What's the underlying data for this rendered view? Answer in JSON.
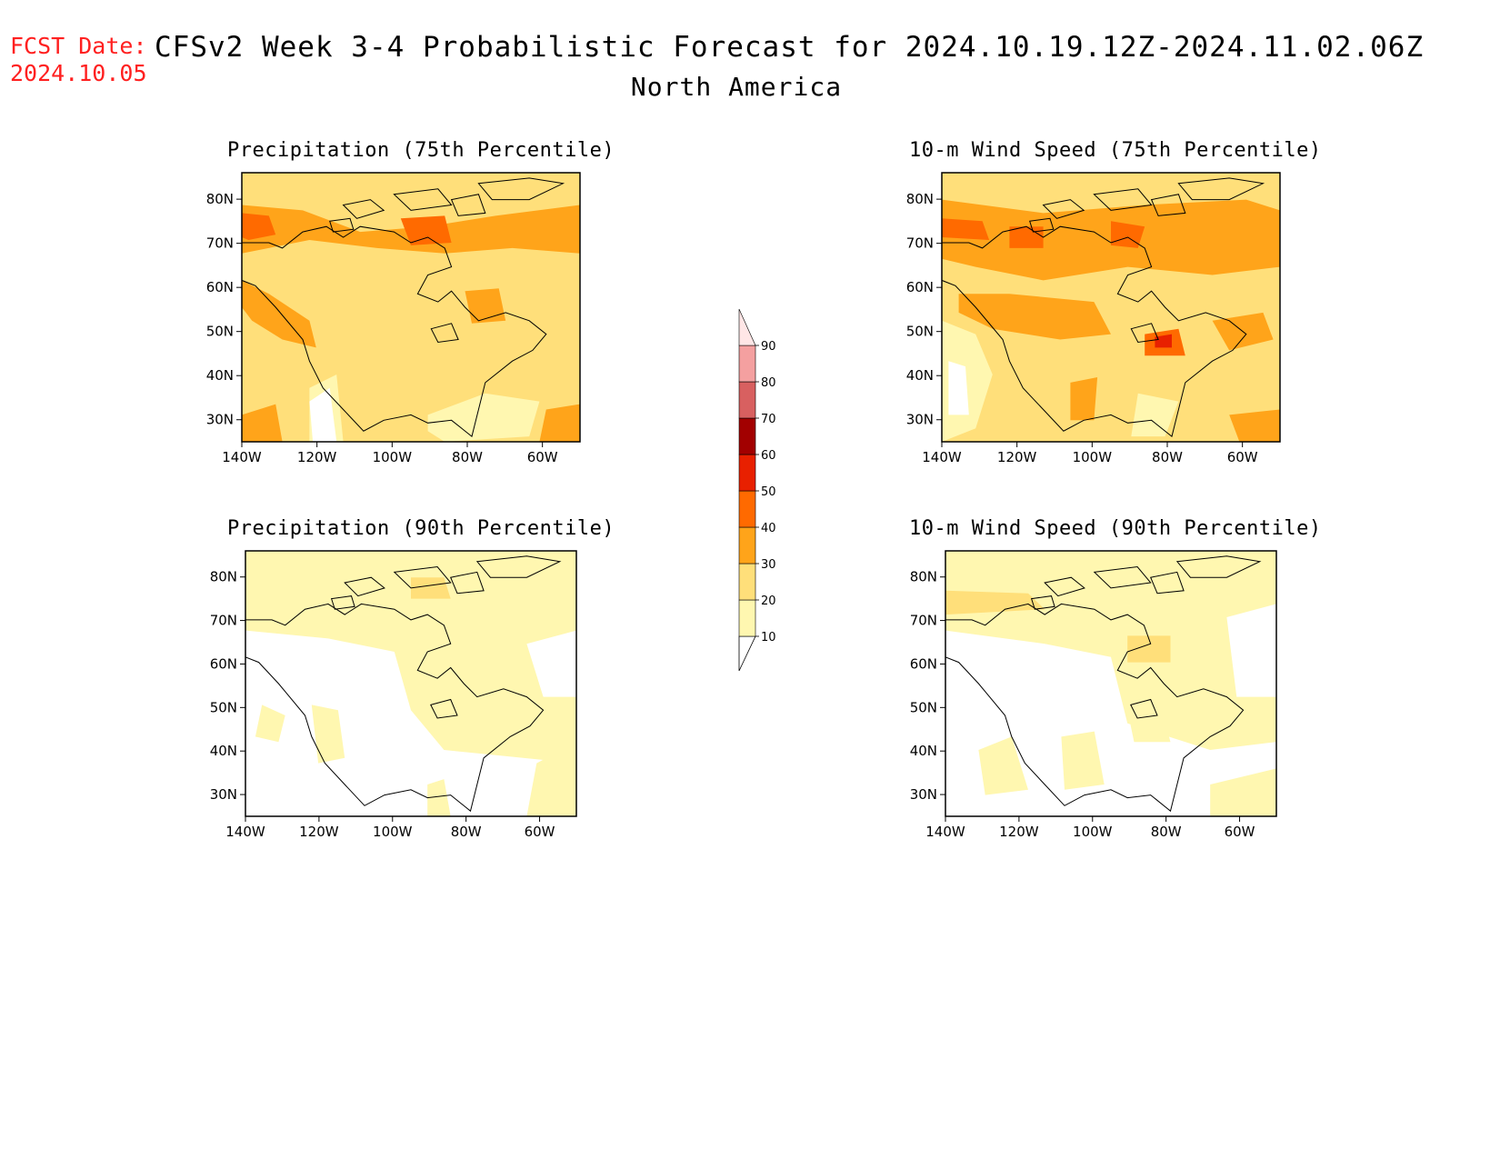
{
  "header": {
    "fcst_label": "FCST Date:",
    "fcst_date": "2024.10.05",
    "title": "CFSv2 Week 3-4 Probabilistic Forecast for 2024.10.19.12Z-2024.11.02.06Z",
    "region": "North America"
  },
  "panels": [
    {
      "id": "precip75",
      "title": "Precipitation (75th Percentile)",
      "level": "high"
    },
    {
      "id": "wind75",
      "title": "10-m Wind Speed (75th Percentile)",
      "level": "vhigh"
    },
    {
      "id": "precip90",
      "title": "Precipitation (90th Percentile)",
      "level": "low"
    },
    {
      "id": "wind90",
      "title": "10-m Wind Speed (90th Percentile)",
      "level": "low2"
    }
  ],
  "axes": {
    "lat_labels": [
      "80N",
      "70N",
      "60N",
      "50N",
      "40N",
      "30N"
    ],
    "lon_labels": [
      "140W",
      "120W",
      "100W",
      "80W",
      "60W"
    ],
    "lat_values": [
      80,
      70,
      60,
      50,
      40,
      30
    ],
    "lon_values": [
      -140,
      -120,
      -100,
      -80,
      -60
    ],
    "lat_range": [
      25,
      86
    ],
    "lon_range": [
      -140,
      -50
    ]
  },
  "colorbar": {
    "labels": [
      "10",
      "20",
      "30",
      "40",
      "50",
      "60",
      "70",
      "80",
      "90"
    ],
    "colors": [
      "#fff7b0",
      "#ffdf7a",
      "#ffa41a",
      "#ff6a00",
      "#e82000",
      "#a20000",
      "#d86060",
      "#f4a0a0",
      "#ffe6e6"
    ]
  },
  "colors": {
    "c10": "#fff7b0",
    "c20": "#ffdf7a",
    "c30": "#ffa41a",
    "c40": "#ff6a00",
    "c50": "#e82000",
    "coast": "#000000"
  }
}
